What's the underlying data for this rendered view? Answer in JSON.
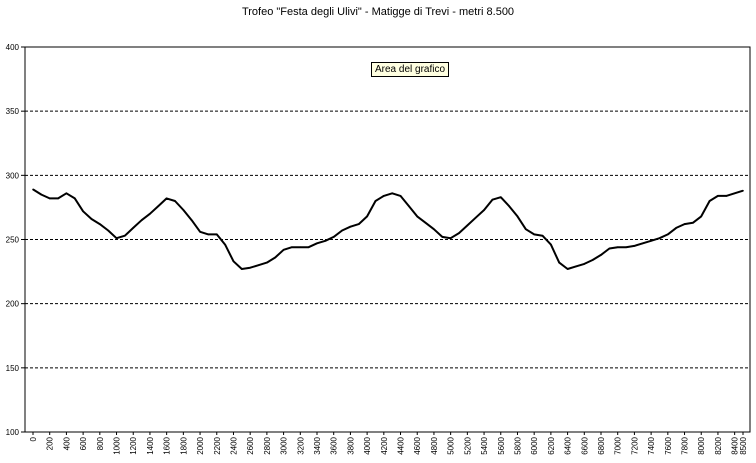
{
  "chart_data": {
    "type": "line",
    "title": "Trofeo \"Festa degli Ulivi\" - Matigge di Trevi - metri 8.500",
    "xlabel": "",
    "ylabel": "",
    "ylim": [
      100,
      400
    ],
    "yticks": [
      100,
      150,
      200,
      250,
      300,
      350,
      400
    ],
    "xlim": [
      0,
      8500
    ],
    "xticks": [
      0,
      200,
      400,
      600,
      800,
      1000,
      1200,
      1400,
      1600,
      1800,
      2000,
      2200,
      2400,
      2600,
      2800,
      3000,
      3200,
      3400,
      3600,
      3800,
      4000,
      4200,
      4400,
      4600,
      4800,
      5000,
      5200,
      5400,
      5600,
      5800,
      6000,
      6200,
      6400,
      6600,
      6800,
      7000,
      7200,
      7400,
      7600,
      7800,
      8000,
      8200,
      8400,
      8500
    ],
    "grid": "horizontal dashed",
    "legend": "none",
    "series": [
      {
        "color": "#000000",
        "x": [
          0,
          100,
          200,
          300,
          400,
          500,
          600,
          700,
          800,
          900,
          1000,
          1100,
          1200,
          1300,
          1400,
          1500,
          1600,
          1700,
          1800,
          1900,
          2000,
          2100,
          2200,
          2300,
          2400,
          2500,
          2600,
          2700,
          2800,
          2900,
          3000,
          3100,
          3200,
          3300,
          3400,
          3500,
          3600,
          3700,
          3800,
          3900,
          4000,
          4100,
          4200,
          4300,
          4400,
          4500,
          4600,
          4700,
          4800,
          4900,
          5000,
          5100,
          5200,
          5300,
          5400,
          5500,
          5600,
          5700,
          5800,
          5900,
          6000,
          6100,
          6200,
          6300,
          6400,
          6500,
          6600,
          6700,
          6800,
          6900,
          7000,
          7100,
          7200,
          7300,
          7400,
          7500,
          7600,
          7700,
          7800,
          7900,
          8000,
          8100,
          8200,
          8300,
          8400,
          8500
        ],
        "y": [
          289,
          285,
          282,
          282,
          286,
          282,
          272,
          266,
          262,
          257,
          251,
          253,
          259,
          265,
          270,
          276,
          282,
          280,
          273,
          265,
          256,
          254,
          254,
          246,
          233,
          227,
          228,
          230,
          232,
          236,
          242,
          244,
          244,
          244,
          247,
          249,
          252,
          257,
          260,
          262,
          268,
          280,
          284,
          286,
          284,
          276,
          268,
          263,
          258,
          252,
          251,
          255,
          261,
          267,
          273,
          281,
          283,
          276,
          268,
          258,
          254,
          253,
          246,
          232,
          227,
          229,
          231,
          234,
          238,
          243,
          244,
          244,
          245,
          247,
          249,
          251,
          254,
          259,
          262,
          263,
          268,
          280,
          284,
          284,
          286,
          288
        ]
      }
    ],
    "annotation": "Area del grafico"
  }
}
